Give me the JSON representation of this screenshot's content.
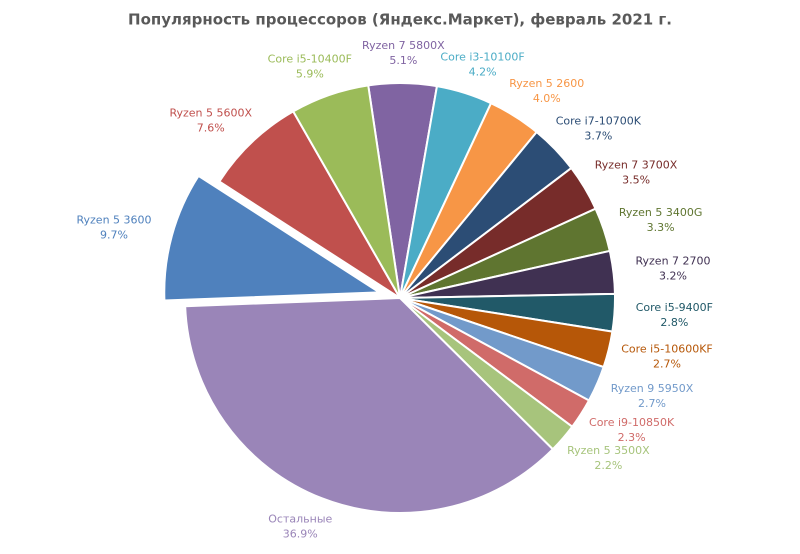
{
  "chart_data": {
    "type": "pie",
    "title": "Популярность процессоров (Яндекс.Маркет), февраль 2021 г.",
    "categories": [
      "Ryzen 7 5800X",
      "Core i3-10100F",
      "Ryzen 5 2600",
      "Core i7-10700K",
      "Ryzen 7 3700X",
      "Ryzen 5 3400G",
      "Ryzen 7 2700",
      "Core i5-9400F",
      "Core i5-10600KF",
      "Ryzen 9 5950X",
      "Core i9-10850K",
      "Ryzen 5 3500X",
      "Остальные",
      "Ryzen 5 3600",
      "Ryzen 5 5600X",
      "Core i5-10400F"
    ],
    "values": [
      5.1,
      4.2,
      4.0,
      3.7,
      3.5,
      3.3,
      3.2,
      2.8,
      2.7,
      2.7,
      2.3,
      2.2,
      36.9,
      9.7,
      7.6,
      5.9
    ],
    "value_labels": [
      "5.1%",
      "4.2%",
      "4.0%",
      "3.7%",
      "3.5%",
      "3.3%",
      "3.2%",
      "2.8%",
      "2.7%",
      "2.7%",
      "2.3%",
      "2.2%",
      "36.9%",
      "9.7%",
      "7.6%",
      "5.9%"
    ],
    "colors": [
      "#8064a2",
      "#4bacc6",
      "#f79646",
      "#2c4d75",
      "#772c2a",
      "#5f7530",
      "#403152",
      "#215968",
      "#b65708",
      "#729aca",
      "#d06b69",
      "#a7c47c",
      "#9a85b8",
      "#4f81bd",
      "#c0504d",
      "#9bbb59"
    ],
    "explode": [
      0,
      0,
      0,
      0,
      0,
      0,
      0,
      0,
      0,
      0,
      0,
      0,
      0,
      0.1,
      0,
      0
    ]
  }
}
